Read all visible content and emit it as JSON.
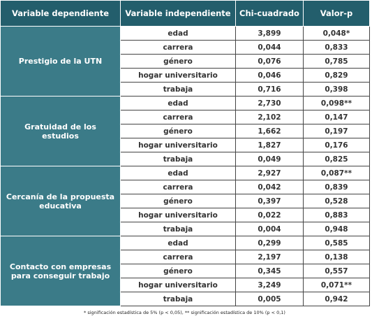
{
  "table": {
    "header": [
      "Variable dependiente",
      "Variable independiente",
      "Chi-cuadrado",
      "Valor-p"
    ],
    "groups": [
      {
        "label": "Prestigio de la UTN",
        "rows": [
          [
            "edad",
            "3,899",
            "0,048*"
          ],
          [
            "carrera",
            "0,044",
            "0,833"
          ],
          [
            "género",
            "0,076",
            "0,785"
          ],
          [
            "hogar universitario",
            "0,046",
            "0,829"
          ],
          [
            "trabaja",
            "0,716",
            "0,398"
          ]
        ]
      },
      {
        "label": "Gratuidad de los estudios",
        "rows": [
          [
            "edad",
            "2,730",
            "0,098**"
          ],
          [
            "carrera",
            "2,102",
            "0,147"
          ],
          [
            "género",
            "1,662",
            "0,197"
          ],
          [
            "hogar universitario",
            "1,827",
            "0,176"
          ],
          [
            "trabaja",
            "0,049",
            "0,825"
          ]
        ]
      },
      {
        "label": "Cercanía de la propuesta educativa",
        "rows": [
          [
            "edad",
            "2,927",
            "0,087**"
          ],
          [
            "carrera",
            "0,042",
            "0,839"
          ],
          [
            "género",
            "0,397",
            "0,528"
          ],
          [
            "hogar universitario",
            "0,022",
            "0,883"
          ],
          [
            "trabaja",
            "0,004",
            "0,948"
          ]
        ]
      },
      {
        "label": "Contacto con empresas para conseguir trabajo",
        "rows": [
          [
            "edad",
            "0,299",
            "0,585"
          ],
          [
            "carrera",
            "2,197",
            "0,138"
          ],
          [
            "género",
            "0,345",
            "0,557"
          ],
          [
            "hogar universitario",
            "3,249",
            "0,071**"
          ],
          [
            "trabaja",
            "0,005",
            "0,942"
          ]
        ]
      }
    ],
    "footnote": "* significación estadística de 5% (p < 0,05), ** significación estadística de 10% (p < 0,1)"
  }
}
